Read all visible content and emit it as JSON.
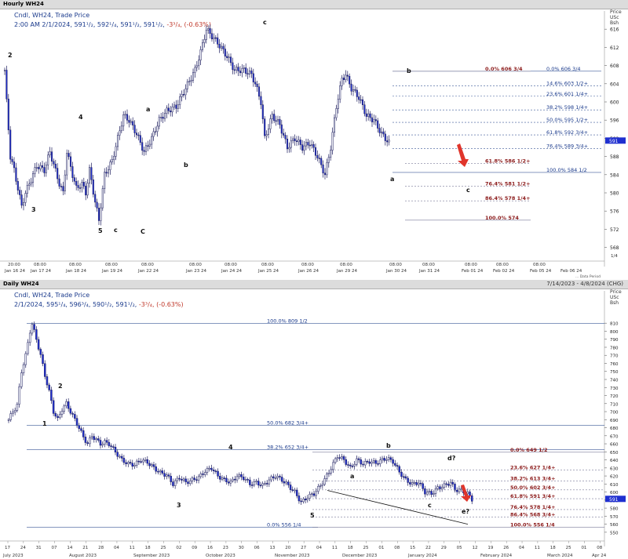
{
  "hourly": {
    "window_title": "Hourly WH24",
    "header_line1": "Cndl, WH24, Trade Price",
    "header_line2": "2:00 AM 2/1/2024, 591¹/₂, 592¹/₄, 591¹/₂, 591¹/₂,",
    "header_change": "-3³/₄, (-0.63%)",
    "price_head": [
      "Price",
      "USc",
      "Bsh"
    ],
    "y_ticks": [
      "616",
      "612",
      "608",
      "604",
      "600",
      "596",
      "592",
      "588",
      "584",
      "580",
      "576",
      "572",
      "568"
    ],
    "y_tick_values": [
      616,
      612,
      608,
      604,
      600,
      596,
      592,
      588,
      584,
      580,
      576,
      572,
      568
    ],
    "ylim": [
      565,
      620
    ],
    "current_price": "591",
    "corner_label": "1/4",
    "x_time_labels": [
      "20:00",
      "08:00",
      "08:00",
      "08:00",
      "08:00",
      "08:00",
      "08:00",
      "08:00",
      "08:00",
      "08:00",
      "08:00",
      "08:00",
      "08:00",
      "08:00",
      "08:00"
    ],
    "x_date_labels": [
      "Jan 16 24",
      "Jan 17 24",
      "Jan 18 24",
      "Jan 19 24",
      "Jan 22 24",
      "Jan 23 24",
      "Jan 24 24",
      "Jan 25 24",
      "Jan 26 24",
      "Jan 29 24",
      "Jan 30 24",
      "Jan 31 24",
      "Feb 01 24",
      "Feb 02 24",
      "Feb 05 24",
      "Feb 06 24"
    ],
    "footer_note": "... Data Period",
    "wave_labels": [
      "2",
      "3",
      "4",
      "5",
      "c",
      "a",
      "b",
      "C",
      "c",
      "a",
      "b",
      "c"
    ],
    "chart_data": {
      "type": "candlestick",
      "anchors": [
        [
          0,
          607
        ],
        [
          1,
          600
        ],
        [
          3,
          588
        ],
        [
          5,
          585
        ],
        [
          9,
          577
        ],
        [
          11,
          580
        ],
        [
          14,
          583
        ],
        [
          17,
          586
        ],
        [
          21,
          585
        ],
        [
          24,
          589
        ],
        [
          29,
          582
        ],
        [
          31,
          580
        ],
        [
          33,
          589
        ],
        [
          36,
          584
        ],
        [
          38,
          581
        ],
        [
          41,
          582
        ],
        [
          43,
          580
        ],
        [
          45,
          585
        ],
        [
          48,
          578
        ],
        [
          50,
          574
        ],
        [
          53,
          584
        ],
        [
          57,
          587
        ],
        [
          60,
          592
        ],
        [
          63,
          597
        ],
        [
          66,
          596
        ],
        [
          70,
          593
        ],
        [
          74,
          589
        ],
        [
          78,
          592
        ],
        [
          82,
          596
        ],
        [
          86,
          598
        ],
        [
          91,
          599
        ],
        [
          96,
          603
        ],
        [
          101,
          607
        ],
        [
          104,
          611
        ],
        [
          107,
          616
        ],
        [
          109,
          615
        ],
        [
          113,
          613
        ],
        [
          118,
          610
        ],
        [
          122,
          607
        ],
        [
          127,
          607
        ],
        [
          131,
          606
        ],
        [
          133,
          604
        ],
        [
          136,
          600
        ],
        [
          138,
          592
        ],
        [
          142,
          597
        ],
        [
          146,
          595
        ],
        [
          150,
          590
        ],
        [
          154,
          592
        ],
        [
          158,
          590
        ],
        [
          162,
          591
        ],
        [
          166,
          588
        ],
        [
          170,
          584
        ],
        [
          173,
          590
        ],
        [
          176,
          599
        ],
        [
          179,
          605
        ],
        [
          181,
          606
        ],
        [
          184,
          603
        ],
        [
          188,
          601
        ],
        [
          192,
          597
        ],
        [
          196,
          596
        ],
        [
          200,
          593
        ],
        [
          204,
          591
        ]
      ],
      "fib_retracement_b": [
        {
          "label": "0.0%",
          "value": "606 3/4",
          "level": 606.75
        },
        {
          "label": "14.6%",
          "value": "603 1/2+",
          "level": 603.5
        },
        {
          "label": "23.6%",
          "value": "601 1/4+",
          "level": 601.25
        },
        {
          "label": "38.2%",
          "value": "598 1/4+",
          "level": 598.25
        },
        {
          "label": "50.0%",
          "value": "595 1/2+",
          "level": 595.5
        },
        {
          "label": "61.8%",
          "value": "592 3/4+",
          "level": 592.75
        },
        {
          "label": "76.4%",
          "value": "589 3/4+",
          "level": 589.75
        },
        {
          "label": "100.0%",
          "value": "584 1/2",
          "level": 584.5
        }
      ],
      "fib_extension_red": [
        {
          "label": "0.0%",
          "value": "606 3/4",
          "level": 606.75
        },
        {
          "label": "61.8%",
          "value": "586 1/2+",
          "level": 586.5
        },
        {
          "label": "76.4%",
          "value": "581 1/2+",
          "level": 581.5
        },
        {
          "label": "86.4%",
          "value": "578 1/4+",
          "level": 578.25
        },
        {
          "label": "100.0%",
          "value": "574",
          "level": 574
        }
      ]
    }
  },
  "daily": {
    "window_title": "Daily WH24",
    "date_range": "7/14/2023 - 4/8/2024 (CHG)",
    "header_line1": "Cndl, WH24, Trade Price",
    "header_line2": "2/1/2024, 595¹/₄, 596³/₄, 590¹/₂, 591¹/₂,",
    "header_change": "-3³/₄, (-0.63%)",
    "price_head": [
      "Price",
      "USc",
      "Bsh"
    ],
    "y_ticks": [
      "810",
      "800",
      "790",
      "780",
      "770",
      "760",
      "750",
      "740",
      "730",
      "720",
      "710",
      "700",
      "690",
      "680",
      "670",
      "660",
      "650",
      "640",
      "630",
      "620",
      "610",
      "600",
      "590",
      "580",
      "570",
      "560",
      "550"
    ],
    "y_tick_values": [
      810,
      800,
      790,
      780,
      770,
      760,
      750,
      740,
      730,
      720,
      710,
      700,
      690,
      680,
      670,
      660,
      650,
      640,
      630,
      620,
      610,
      600,
      590,
      580,
      570,
      560,
      550
    ],
    "ylim": [
      545,
      818
    ],
    "current_price": "591",
    "x_day_labels": [
      "17",
      "24",
      "31",
      "07",
      "14",
      "21",
      "28",
      "04",
      "11",
      "18",
      "25",
      "02",
      "09",
      "16",
      "23",
      "30",
      "06",
      "13",
      "20",
      "27",
      "04",
      "11",
      "18",
      "25",
      "01",
      "08",
      "15",
      "22",
      "29",
      "05",
      "12",
      "19",
      "26",
      "04",
      "11",
      "18",
      "25",
      "01",
      "08"
    ],
    "x_month_labels": [
      "July 2023",
      "August 2023",
      "September 2023",
      "October 2023",
      "November 2023",
      "December 2023",
      "January 2024",
      "February 2024",
      "March 2024",
      "Apr 24"
    ],
    "wave_labels": [
      "1",
      "2",
      "3",
      "4",
      "5",
      "a",
      "b",
      "c",
      "d?",
      "e?"
    ],
    "chart_data": {
      "type": "candlestick",
      "anchors": [
        [
          0,
          690
        ],
        [
          2,
          700
        ],
        [
          4,
          708
        ],
        [
          6,
          750
        ],
        [
          8,
          770
        ],
        [
          10,
          800
        ],
        [
          11,
          809
        ],
        [
          13,
          790
        ],
        [
          15,
          770
        ],
        [
          17,
          745
        ],
        [
          19,
          725
        ],
        [
          21,
          700
        ],
        [
          23,
          690
        ],
        [
          25,
          703
        ],
        [
          27,
          710
        ],
        [
          29,
          700
        ],
        [
          31,
          690
        ],
        [
          33,
          680
        ],
        [
          35,
          668
        ],
        [
          37,
          660
        ],
        [
          39,
          670
        ],
        [
          41,
          665
        ],
        [
          43,
          660
        ],
        [
          45,
          662
        ],
        [
          47,
          660
        ],
        [
          50,
          650
        ],
        [
          53,
          640
        ],
        [
          56,
          635
        ],
        [
          59,
          634
        ],
        [
          62,
          640
        ],
        [
          65,
          637
        ],
        [
          68,
          630
        ],
        [
          71,
          624
        ],
        [
          74,
          621
        ],
        [
          77,
          610
        ],
        [
          80,
          618
        ],
        [
          83,
          612
        ],
        [
          86,
          615
        ],
        [
          89,
          618
        ],
        [
          92,
          626
        ],
        [
          95,
          630
        ],
        [
          98,
          620
        ],
        [
          101,
          615
        ],
        [
          104,
          612
        ],
        [
          107,
          620
        ],
        [
          110,
          618
        ],
        [
          113,
          610
        ],
        [
          116,
          612
        ],
        [
          119,
          608
        ],
        [
          122,
          615
        ],
        [
          125,
          620
        ],
        [
          128,
          615
        ],
        [
          131,
          608
        ],
        [
          134,
          600
        ],
        [
          137,
          587
        ],
        [
          140,
          594
        ],
        [
          143,
          598
        ],
        [
          146,
          608
        ],
        [
          149,
          620
        ],
        [
          152,
          635
        ],
        [
          154,
          645
        ],
        [
          157,
          640
        ],
        [
          160,
          630
        ],
        [
          163,
          640
        ],
        [
          166,
          635
        ],
        [
          169,
          638
        ],
        [
          172,
          636
        ],
        [
          175,
          640
        ],
        [
          177,
          642
        ],
        [
          180,
          638
        ],
        [
          183,
          625
        ],
        [
          186,
          615
        ],
        [
          189,
          610
        ],
        [
          192,
          612
        ],
        [
          195,
          600
        ],
        [
          198,
          598
        ],
        [
          201,
          605
        ],
        [
          204,
          608
        ],
        [
          207,
          612
        ],
        [
          209,
          603
        ],
        [
          212,
          602
        ],
        [
          215,
          598
        ],
        [
          217,
          591
        ]
      ],
      "fib_retracement_major": [
        {
          "label": "100.0%",
          "value": "809 1/2",
          "level": 809.5
        },
        {
          "label": "50.0%",
          "value": "682 3/4+",
          "level": 682.75
        },
        {
          "label": "38.2%",
          "value": "652 3/4+",
          "level": 652.75
        },
        {
          "label": "0.0%",
          "value": "556 1/4",
          "level": 556.25
        }
      ],
      "fib_retracement_minor": [
        {
          "label": "0.0%",
          "value": "649 1/2",
          "level": 649.5
        },
        {
          "label": "23.6%",
          "value": "627 1/4+",
          "level": 627.25
        },
        {
          "label": "38.2%",
          "value": "613 3/4+",
          "level": 613.75
        },
        {
          "label": "50.0%",
          "value": "602 3/4+",
          "level": 602.75
        },
        {
          "label": "61.8%",
          "value": "591 3/4+",
          "level": 591.75
        },
        {
          "label": "76.4%",
          "value": "578 1/4+",
          "level": 578.25
        },
        {
          "label": "86.4%",
          "value": "568 3/4+",
          "level": 568.75
        },
        {
          "label": "100.0%",
          "value": "556 1/4",
          "level": 556.25
        }
      ]
    }
  },
  "colors": {
    "up": "#f4f6fb",
    "down": "#1f2fd0",
    "wick": "#202060",
    "fib_blue": "#1a3a8c",
    "fib_red": "#8b1a1a",
    "arrow": "#e0352b",
    "current": "#1f2fd0"
  }
}
